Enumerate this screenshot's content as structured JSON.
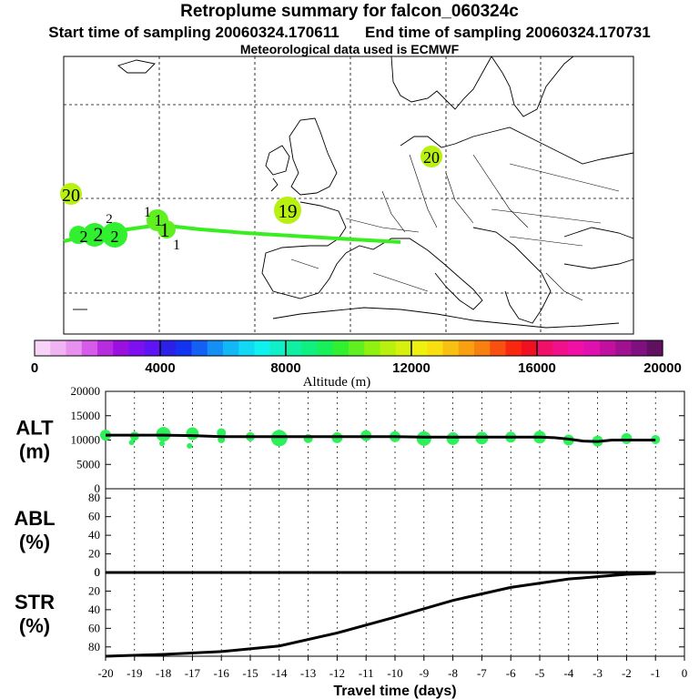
{
  "titles": {
    "main": "Retroplume summary for falcon_060324c",
    "sampling": "Start time of sampling 20060324.170611      End time of sampling 20060324.170731",
    "met": "Meteorological data used is ECMWF"
  },
  "colorbar": {
    "label": "Altitude (m)",
    "ticks": [
      "0",
      "4000",
      "8000",
      "12000",
      "16000",
      "20000"
    ],
    "tick_values": [
      0,
      4000,
      8000,
      12000,
      16000,
      20000
    ],
    "range": [
      0,
      20000
    ],
    "colors": [
      "#f7d4f7",
      "#efb4f2",
      "#e890f0",
      "#d85ae8",
      "#b82ce0",
      "#9b10e0",
      "#7c10f0",
      "#5e14f5",
      "#2a20e8",
      "#1433f0",
      "#1460f5",
      "#1490f5",
      "#12b8f5",
      "#10d8f5",
      "#10f0ec",
      "#10f0c8",
      "#10f0a4",
      "#10f080",
      "#18f05a",
      "#30f030",
      "#60f020",
      "#90f010",
      "#b8f010",
      "#d8f010",
      "#f0f010",
      "#f8e010",
      "#f8c010",
      "#f8a010",
      "#f88010",
      "#f85010",
      "#f82810",
      "#f01020",
      "#f0106a",
      "#f0108c",
      "#f010a8",
      "#e010b0",
      "#c010a0",
      "#a01090",
      "#801080",
      "#601060"
    ]
  },
  "map": {
    "plume_labels": [
      "20",
      "19",
      "20",
      "1",
      "1",
      "1",
      "1",
      "2",
      "2",
      "2",
      "2"
    ]
  },
  "chart_data": {
    "type": "line",
    "xlabel": "Travel time (days)",
    "x_ticks": [
      "-20",
      "-19",
      "-18",
      "-17",
      "-16",
      "-15",
      "-14",
      "-13",
      "-12",
      "-11",
      "-10",
      "-9",
      "-8",
      "-7",
      "-6",
      "-5",
      "-4",
      "-3",
      "-2",
      "-1",
      "0"
    ],
    "x_tick_values": [
      -20,
      -19,
      -18,
      -17,
      -16,
      -15,
      -14,
      -13,
      -12,
      -11,
      -10,
      -9,
      -8,
      -7,
      -6,
      -5,
      -4,
      -3,
      -2,
      -1,
      0
    ],
    "xlim": [
      -20,
      0
    ],
    "panels": [
      {
        "name": "ALT",
        "ylabel": "ALT\n(m)",
        "ylabel_lines": [
          "ALT",
          "(m)"
        ],
        "yticks": [
          "20000",
          "15000",
          "10000",
          "5000",
          "0"
        ],
        "ytick_values": [
          20000,
          15000,
          10000,
          5000,
          0
        ],
        "ylim": [
          0,
          20000
        ],
        "series": [
          {
            "name": "median altitude",
            "x": [
              -20,
              -19,
              -18,
              -17,
              -16,
              -15,
              -14,
              -13,
              -12,
              -11,
              -10,
              -9,
              -8,
              -7,
              -6,
              -5,
              -4.5,
              -4,
              -3.5,
              -3,
              -2.5,
              -2,
              -1
            ],
            "values": [
              11000,
              11000,
              11000,
              10900,
              10700,
              10700,
              10700,
              10700,
              10700,
              10700,
              10700,
              10600,
              10600,
              10600,
              10600,
              10600,
              10500,
              10200,
              9800,
              9700,
              10000,
              10000,
              10000
            ]
          }
        ],
        "clusters": [
          {
            "x": -20,
            "y": 11000,
            "r": 6
          },
          {
            "x": -19,
            "y": 10800,
            "r": 5
          },
          {
            "x": -19.1,
            "y": 9500,
            "r": 3
          },
          {
            "x": -18,
            "y": 11200,
            "r": 8
          },
          {
            "x": -18.05,
            "y": 9300,
            "r": 3
          },
          {
            "x": -17,
            "y": 11300,
            "r": 7
          },
          {
            "x": -17.1,
            "y": 8800,
            "r": 3
          },
          {
            "x": -16,
            "y": 11500,
            "r": 5
          },
          {
            "x": -16,
            "y": 10100,
            "r": 4
          },
          {
            "x": -15,
            "y": 10700,
            "r": 5
          },
          {
            "x": -14,
            "y": 10400,
            "r": 9
          },
          {
            "x": -13,
            "y": 10300,
            "r": 5
          },
          {
            "x": -12,
            "y": 10500,
            "r": 6
          },
          {
            "x": -11,
            "y": 10900,
            "r": 6
          },
          {
            "x": -10,
            "y": 10700,
            "r": 6
          },
          {
            "x": -9,
            "y": 10300,
            "r": 8
          },
          {
            "x": -8,
            "y": 10300,
            "r": 7
          },
          {
            "x": -7,
            "y": 10400,
            "r": 7
          },
          {
            "x": -6,
            "y": 10600,
            "r": 6
          },
          {
            "x": -5,
            "y": 10600,
            "r": 7
          },
          {
            "x": -4,
            "y": 10000,
            "r": 6
          },
          {
            "x": -3,
            "y": 9800,
            "r": 6
          },
          {
            "x": -2,
            "y": 10300,
            "r": 6
          },
          {
            "x": -1,
            "y": 10100,
            "r": 5
          }
        ]
      },
      {
        "name": "ABL",
        "ylabel": "ABL\n(%)",
        "ylabel_lines": [
          "ABL",
          "(%)"
        ],
        "yticks": [
          "80",
          "60",
          "40",
          "20",
          "0"
        ],
        "ytick_values": [
          80,
          60,
          40,
          20,
          0
        ],
        "ylim": [
          0,
          90
        ],
        "series": [
          {
            "name": "ABL fraction",
            "x": [
              -20,
              -1
            ],
            "values": [
              0,
              0
            ]
          }
        ]
      },
      {
        "name": "STR",
        "ylabel": "STR\n(%)",
        "ylabel_lines": [
          "STR",
          "(%)"
        ],
        "yticks": [
          "80",
          "60",
          "40",
          "20",
          "0"
        ],
        "ytick_values": [
          80,
          60,
          40,
          20,
          0
        ],
        "ylim": [
          0,
          90
        ],
        "inverted": true,
        "series": [
          {
            "name": "stratospheric fraction",
            "x": [
              -20,
              -18,
              -16,
              -14,
              -12,
              -10,
              -8,
              -6,
              -4,
              -2,
              -1
            ],
            "values": [
              90,
              88,
              85,
              79,
              65,
              48,
              30,
              16,
              7,
              2,
              1
            ]
          }
        ]
      }
    ]
  }
}
